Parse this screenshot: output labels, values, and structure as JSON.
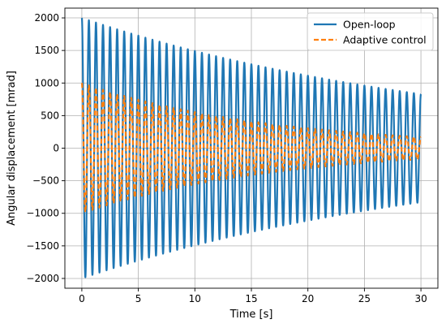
{
  "chart_data": {
    "type": "line",
    "title": "",
    "xlabel": "Time [s]",
    "ylabel": "Angular displacement [mrad]",
    "xlim": [
      -1.5,
      31.5
    ],
    "ylim": [
      -2150,
      2150
    ],
    "x_ticks": [
      0,
      5,
      10,
      15,
      20,
      25,
      30
    ],
    "y_ticks": [
      -2000,
      -1500,
      -1000,
      -500,
      0,
      500,
      1000,
      1500,
      2000
    ],
    "x_tick_labels": [
      "0",
      "5",
      "10",
      "15",
      "20",
      "25",
      "30"
    ],
    "y_tick_labels": [
      "−2000",
      "−1500",
      "−1000",
      "−500",
      "0",
      "500",
      "1000",
      "1500",
      "2000"
    ],
    "grid": true,
    "legend_position": "upper-right",
    "series": [
      {
        "name": "Open-loop",
        "color": "#1f77b4",
        "style": "solid",
        "signal": "damped-cosine",
        "x_range": [
          0,
          30
        ],
        "initial_amplitude": 2000,
        "final_amplitude": 830,
        "frequency_hz": 1.6
      },
      {
        "name": "Adaptive control",
        "color": "#ff7f0e",
        "style": "dashed",
        "signal": "damped-cosine",
        "x_range": [
          0,
          30
        ],
        "initial_amplitude": 1000,
        "final_amplitude": 170,
        "frequency_hz": 1.6
      }
    ]
  }
}
